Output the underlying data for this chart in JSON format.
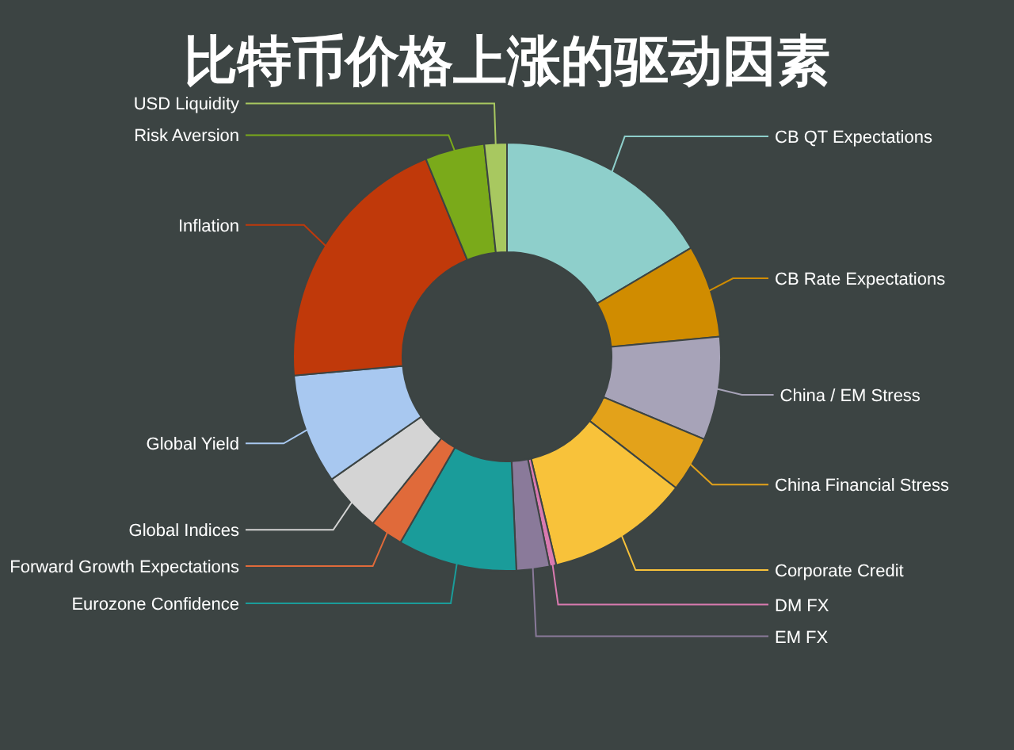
{
  "chart_data": {
    "type": "donut",
    "title": "比特币价格上涨的驱动因素",
    "categories": [
      "CB QT Expectations",
      "CB Rate Expectations",
      "China / EM Stress",
      "China Financial Stress",
      "Corporate Credit",
      "DM FX",
      "EM FX",
      "Eurozone Confidence",
      "Forward Growth Expectations",
      "Global Indices",
      "Global Yield",
      "Inflation",
      "Risk Aversion",
      "USD Liquidity"
    ],
    "values": [
      16.5,
      7,
      7.8,
      4.2,
      10.8,
      0.5,
      2.5,
      9,
      2.5,
      4.5,
      8.3,
      20.2,
      4.5,
      1.7
    ],
    "colors": [
      "#8ecfcb",
      "#d08c00",
      "#a7a3b8",
      "#e3a21a",
      "#f8c23a",
      "#d97ab0",
      "#8a7a9a",
      "#1a9c9a",
      "#e06a3a",
      "#d4d4d4",
      "#a8c8f0",
      "#c0390a",
      "#7aaa1a",
      "#a8c860"
    ],
    "legend": false
  }
}
